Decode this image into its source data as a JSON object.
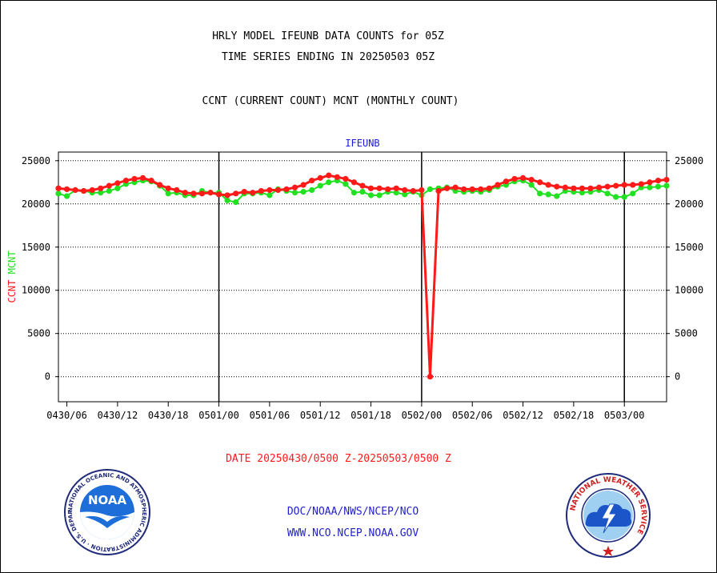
{
  "header": {
    "line1": "HRLY MODEL IFEUNB DATA COUNTS for 05Z",
    "line2": "TIME SERIES ENDING IN 20250503 05Z",
    "line3": "CCNT (CURRENT COUNT) MCNT (MONTHLY COUNT)"
  },
  "footer": {
    "date_range": "DATE 20250430/0500 Z-20250503/0500 Z",
    "org": "DOC/NOAA/NWS/NCEP/NCO",
    "url": "WWW.NCO.NCEP.NOAA.GOV"
  },
  "logos": {
    "noaa_text": "NOAA",
    "noaa_ring": "NATIONAL OCEANIC AND ATMOSPHERIC ADMINISTRATION · U.S. DEPARTMENT OF COMMERCE ·",
    "nws_ring": "NATIONAL WEATHER SERVICE"
  },
  "colors": {
    "ccnt": "#ff1a1a",
    "mcnt": "#22e022",
    "title": "#1a1adc",
    "credit": "#2222cc"
  },
  "chart_data": {
    "type": "line",
    "title": "IFEUNB",
    "ylabel_ccnt": "CCNT",
    "ylabel_mcnt": "MCNT",
    "ylim": [
      -2900,
      26000
    ],
    "yticks": [
      0,
      5000,
      10000,
      15000,
      20000,
      25000
    ],
    "xlim": [
      5,
      77
    ],
    "x_unit": "hours since 0430/00",
    "xticks": [
      {
        "x": 6,
        "label": "0430/06"
      },
      {
        "x": 12,
        "label": "0430/12"
      },
      {
        "x": 18,
        "label": "0430/18"
      },
      {
        "x": 24,
        "label": "0501/00"
      },
      {
        "x": 30,
        "label": "0501/06"
      },
      {
        "x": 36,
        "label": "0501/12"
      },
      {
        "x": 42,
        "label": "0501/18"
      },
      {
        "x": 48,
        "label": "0502/00"
      },
      {
        "x": 54,
        "label": "0502/06"
      },
      {
        "x": 60,
        "label": "0502/12"
      },
      {
        "x": 66,
        "label": "0502/18"
      },
      {
        "x": 72,
        "label": "0503/00"
      }
    ],
    "day_lines": [
      24,
      48,
      72
    ],
    "grid": "horizontal dotted",
    "series": [
      {
        "name": "CCNT",
        "color": "#ff1a1a",
        "x_start": 5,
        "values": [
          21800,
          21700,
          21600,
          21500,
          21600,
          21800,
          22100,
          22400,
          22700,
          22900,
          23000,
          22700,
          22200,
          21800,
          21600,
          21300,
          21200,
          21200,
          21300,
          21100,
          21000,
          21200,
          21400,
          21300,
          21500,
          21600,
          21600,
          21700,
          21900,
          22200,
          22700,
          23000,
          23300,
          23100,
          22900,
          22500,
          22100,
          21800,
          21800,
          21700,
          21800,
          21600,
          21500,
          21600,
          0,
          21500,
          21800,
          21900,
          21700,
          21700,
          21700,
          21800,
          22200,
          22600,
          22900,
          23000,
          22800,
          22500,
          22200,
          22000,
          21900,
          21800,
          21800,
          21800,
          21900,
          22000,
          22100,
          22200,
          22200,
          22300,
          22500,
          22700,
          22800
        ]
      },
      {
        "name": "MCNT",
        "color": "#22e022",
        "x_start": 5,
        "values": [
          21200,
          20900,
          21600,
          21500,
          21300,
          21300,
          21500,
          21800,
          22300,
          22500,
          22700,
          22600,
          22100,
          21200,
          21300,
          21000,
          21000,
          21500,
          21300,
          21300,
          20400,
          20200,
          21200,
          21200,
          21300,
          21000,
          21700,
          21500,
          21300,
          21400,
          21600,
          22100,
          22500,
          22700,
          22300,
          21300,
          21400,
          21000,
          21000,
          21400,
          21300,
          21100,
          21400,
          21000,
          21700,
          21800,
          21900,
          21500,
          21400,
          21500,
          21400,
          21600,
          22000,
          22200,
          22600,
          22700,
          22200,
          21200,
          21100,
          20900,
          21500,
          21400,
          21300,
          21400,
          21600,
          21200,
          20800,
          20800,
          21200,
          21900,
          21900,
          22000,
          22100
        ]
      }
    ]
  }
}
